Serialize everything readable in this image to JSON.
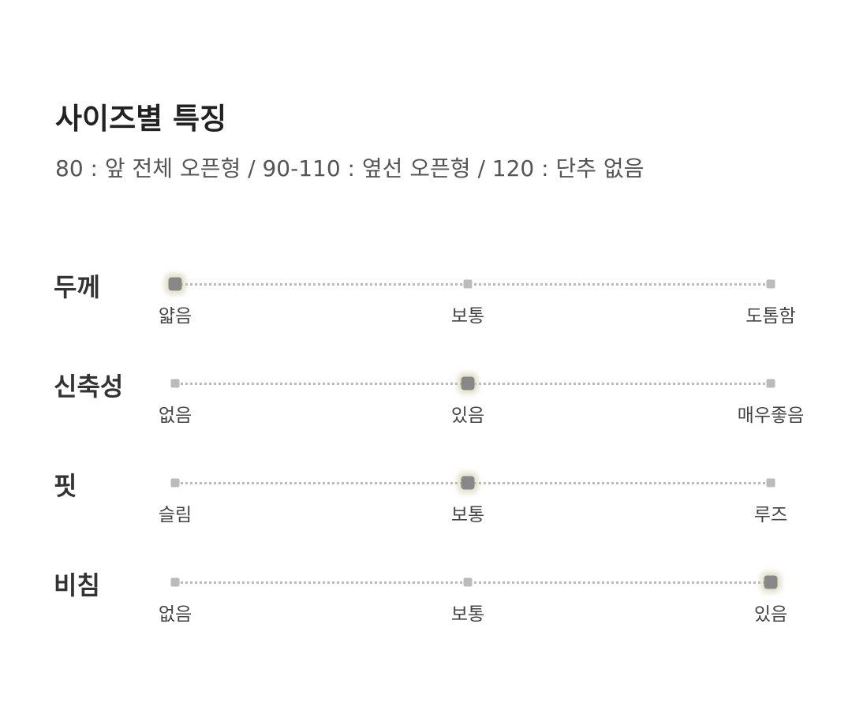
{
  "title": "사이즈별 특징",
  "subtitle": "80 : 앞 전체 오픈형 / 90-110 : 옆선 오픈형 / 120 : 단추 없음",
  "rows": [
    {
      "label": "두께",
      "options": [
        "얇음",
        "보통",
        "도톰함"
      ],
      "selected": 0
    },
    {
      "label": "신축성",
      "options": [
        "없음",
        "있음",
        "매우좋음"
      ],
      "selected": 1
    },
    {
      "label": "핏",
      "options": [
        "슬림",
        "보통",
        "루즈"
      ],
      "selected": 1
    },
    {
      "label": "비침",
      "options": [
        "없음",
        "보통",
        "있음"
      ],
      "selected": 2
    }
  ]
}
